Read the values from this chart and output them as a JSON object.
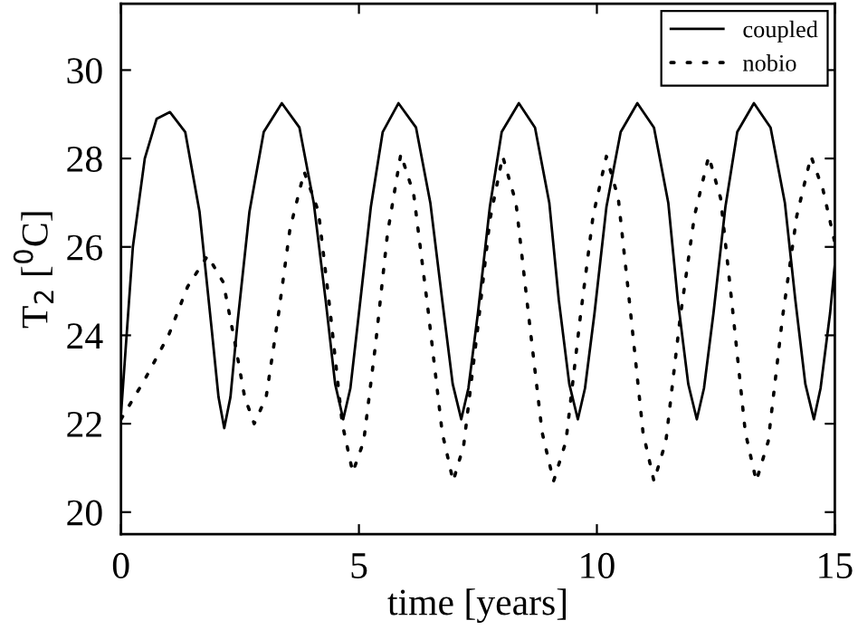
{
  "chart_data": {
    "type": "line",
    "xlabel": "time [years]",
    "ylabel": "T$_{2}$ [$^{0}$C]",
    "xlim": [
      0,
      15
    ],
    "xticks": [
      0,
      5,
      10,
      15
    ],
    "ylim": [
      19.5,
      31.5
    ],
    "yticks": [
      20,
      22,
      24,
      26,
      28,
      30
    ],
    "grid": false,
    "legend": "top right",
    "marker": "none",
    "series": [
      {
        "name": "coupled",
        "color": "#000000",
        "line_style": "solid",
        "x": [
          0,
          0.25,
          0.5,
          0.75,
          1.03,
          1.35,
          1.65,
          1.9,
          2.05,
          2.17,
          2.3,
          2.45,
          2.7,
          3.0,
          3.38,
          3.75,
          4.05,
          4.3,
          4.5,
          4.67,
          4.82,
          5.0,
          5.25,
          5.5,
          5.83,
          6.2,
          6.5,
          6.75,
          6.97,
          7.15,
          7.3,
          7.5,
          7.75,
          8.0,
          8.36,
          8.7,
          9.0,
          9.2,
          9.42,
          9.6,
          9.75,
          9.95,
          10.2,
          10.5,
          10.85,
          11.2,
          11.5,
          11.7,
          11.92,
          12.1,
          12.25,
          12.45,
          12.7,
          12.95,
          13.3,
          13.65,
          13.95,
          14.17,
          14.38,
          14.56,
          14.7,
          14.9,
          15.0
        ],
        "values": [
          22.2,
          26.0,
          28.0,
          28.9,
          29.05,
          28.6,
          26.8,
          24.2,
          22.6,
          21.9,
          22.6,
          24.3,
          26.8,
          28.6,
          29.25,
          28.7,
          27.0,
          24.8,
          22.9,
          22.1,
          22.8,
          24.5,
          26.9,
          28.6,
          29.25,
          28.7,
          27.0,
          24.8,
          22.9,
          22.1,
          22.8,
          24.5,
          26.9,
          28.6,
          29.25,
          28.7,
          27.0,
          24.8,
          22.9,
          22.1,
          22.8,
          24.5,
          26.9,
          28.6,
          29.25,
          28.7,
          27.0,
          24.8,
          22.9,
          22.1,
          22.8,
          24.5,
          26.9,
          28.6,
          29.25,
          28.7,
          27.0,
          24.8,
          22.9,
          22.1,
          22.8,
          24.5,
          25.6
        ]
      },
      {
        "name": "nobio",
        "color": "#000000",
        "line_style": "dotted",
        "x": [
          0,
          0.5,
          1.0,
          1.4,
          1.82,
          2.15,
          2.4,
          2.6,
          2.8,
          3.05,
          3.3,
          3.55,
          3.85,
          4.15,
          4.4,
          4.65,
          4.87,
          5.1,
          5.35,
          5.6,
          5.88,
          6.15,
          6.45,
          6.75,
          6.98,
          7.2,
          7.5,
          7.75,
          8.02,
          8.3,
          8.55,
          8.85,
          9.09,
          9.35,
          9.65,
          9.92,
          10.2,
          10.45,
          10.7,
          10.97,
          11.2,
          11.45,
          11.75,
          12.05,
          12.35,
          12.6,
          12.85,
          13.12,
          13.35,
          13.6,
          13.9,
          14.2,
          14.5,
          14.75,
          15.0
        ],
        "values": [
          22.1,
          23.0,
          24.0,
          25.1,
          25.8,
          25.2,
          23.8,
          22.6,
          22.0,
          22.6,
          24.4,
          26.4,
          27.7,
          26.8,
          24.5,
          22.0,
          20.9,
          21.6,
          23.8,
          26.3,
          28.1,
          27.2,
          24.6,
          21.8,
          20.7,
          21.5,
          24.2,
          26.6,
          28.05,
          27.0,
          24.6,
          21.8,
          20.7,
          21.6,
          24.4,
          26.7,
          28.05,
          27.1,
          24.6,
          21.8,
          20.7,
          21.6,
          24.4,
          26.7,
          28.05,
          27.1,
          24.6,
          21.8,
          20.7,
          21.6,
          24.4,
          26.7,
          28.05,
          27.3,
          26.1
        ]
      }
    ]
  }
}
